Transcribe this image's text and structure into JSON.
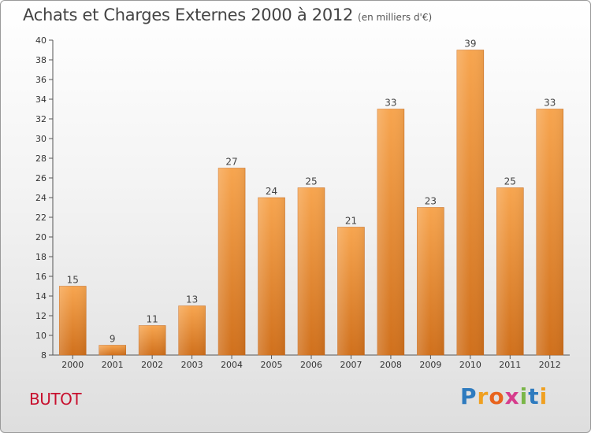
{
  "header": {
    "title": "Achats et Charges Externes 2000 à 2012",
    "subtitle": "(en milliers d'€)"
  },
  "footer": {
    "commune": "BUTOT",
    "logo_letters": [
      "P",
      "r",
      "o",
      "x",
      "i",
      "t",
      "i"
    ],
    "logo_colors": [
      "#2e7bbf",
      "#f0a020",
      "#e8641e",
      "#d63c8c",
      "#7ab648",
      "#2e7bbf",
      "#f0a020"
    ]
  },
  "chart_data": {
    "type": "bar",
    "title": "Achats et Charges Externes 2000 à 2012",
    "subtitle": "(en milliers d'€)",
    "categories": [
      "2000",
      "2001",
      "2002",
      "2003",
      "2004",
      "2005",
      "2006",
      "2007",
      "2008",
      "2009",
      "2010",
      "2011",
      "2012"
    ],
    "values": [
      15,
      9,
      11,
      13,
      27,
      24,
      25,
      21,
      33,
      23,
      39,
      25,
      33
    ],
    "ylim": [
      8,
      40
    ],
    "yticks": [
      8,
      10,
      12,
      14,
      16,
      18,
      20,
      22,
      24,
      26,
      28,
      30,
      32,
      34,
      36,
      38,
      40
    ],
    "grid": false,
    "bar_color": "#f08a2a",
    "data_labels": true
  }
}
